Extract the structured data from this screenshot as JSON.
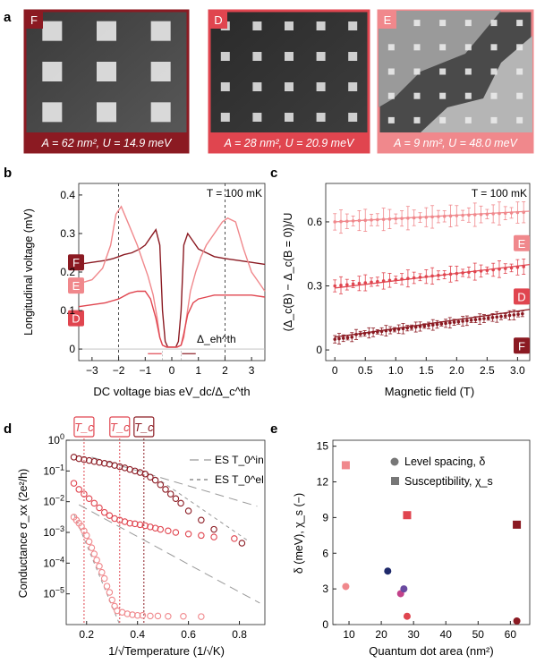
{
  "panel_letters": {
    "a": "a",
    "b": "b",
    "c": "c",
    "d": "d",
    "e": "e"
  },
  "images": [
    {
      "tag": "F",
      "caption": "A = 62 nm², U = 14.9 meV",
      "border_color": "#8b1a22",
      "caption_bg": "#8b1a22"
    },
    {
      "tag": "D",
      "caption": "A = 28 nm², U = 20.9 meV",
      "border_color": "#e0454f",
      "caption_bg": "#e0454f"
    },
    {
      "tag": "E",
      "caption": "A = 9 nm², U = 48.0 meV",
      "border_color": "#f0888c",
      "caption_bg": "#f0888c"
    }
  ],
  "colors": {
    "F": "#8b1a22",
    "D": "#e0454f",
    "E": "#f0888c",
    "gray": "#999999"
  },
  "chart_data": [
    {
      "panel": "b",
      "type": "line",
      "annotation_T": "T = 100 mK",
      "xlabel": "DC voltage bias eV_dc/Δ_c^th",
      "ylabel": "Longitudinal voltage (mV)",
      "xlim": [
        -3.5,
        3.5
      ],
      "ylim": [
        -0.03,
        0.43
      ],
      "xticks": [
        -3,
        -2,
        -1,
        0,
        1,
        2,
        3
      ],
      "yticks": [
        0,
        0.1,
        0.2,
        0.3,
        0.4
      ],
      "vlines": [
        -2,
        2
      ],
      "gap_annotation": "Δ_eh^th",
      "series": [
        {
          "name": "F",
          "color": "#8b1a22",
          "x": [
            -3.5,
            -3,
            -2.5,
            -2.2,
            -2,
            -1.8,
            -1.5,
            -1.2,
            -1,
            -0.8,
            -0.6,
            -0.45,
            -0.35,
            -0.25,
            -0.15,
            0,
            0.15,
            0.25,
            0.35,
            0.45,
            0.6,
            0.8,
            1,
            1.3,
            1.6,
            2,
            2.5,
            3,
            3.5
          ],
          "y": [
            0.22,
            0.225,
            0.23,
            0.235,
            0.24,
            0.245,
            0.25,
            0.26,
            0.27,
            0.29,
            0.31,
            0.27,
            0.1,
            0.02,
            0.005,
            0.005,
            0.005,
            0.02,
            0.1,
            0.27,
            0.3,
            0.28,
            0.26,
            0.25,
            0.24,
            0.235,
            0.23,
            0.225,
            0.22
          ]
        },
        {
          "name": "E",
          "color": "#f0888c",
          "x": [
            -3.5,
            -3,
            -2.6,
            -2.3,
            -2.1,
            -1.9,
            -1.6,
            -1.3,
            -1.1,
            -0.9,
            -0.7,
            -0.55,
            -0.45,
            -0.35,
            -0.2,
            0,
            0.2,
            0.35,
            0.45,
            0.55,
            0.7,
            0.9,
            1.1,
            1.3,
            1.6,
            1.9,
            2.1,
            2.4,
            2.7,
            3,
            3.3,
            3.5
          ],
          "y": [
            0.17,
            0.18,
            0.21,
            0.27,
            0.35,
            0.37,
            0.32,
            0.27,
            0.23,
            0.19,
            0.14,
            0.08,
            0.03,
            0.01,
            0.005,
            0.005,
            0.005,
            0.01,
            0.03,
            0.08,
            0.15,
            0.2,
            0.24,
            0.27,
            0.3,
            0.33,
            0.34,
            0.33,
            0.26,
            0.2,
            0.17,
            0.15
          ]
        },
        {
          "name": "D",
          "color": "#e0454f",
          "x": [
            -3.5,
            -3,
            -2.5,
            -2,
            -1.6,
            -1.3,
            -1,
            -0.8,
            -0.6,
            -0.45,
            -0.35,
            -0.2,
            0,
            0.2,
            0.35,
            0.45,
            0.6,
            0.8,
            1,
            1.3,
            1.6,
            2,
            2.5,
            3,
            3.5
          ],
          "y": [
            0.11,
            0.115,
            0.12,
            0.13,
            0.145,
            0.15,
            0.15,
            0.13,
            0.08,
            0.03,
            0.01,
            0.005,
            0.005,
            0.005,
            0.01,
            0.04,
            0.09,
            0.12,
            0.13,
            0.135,
            0.14,
            0.14,
            0.14,
            0.14,
            0.135
          ]
        }
      ]
    },
    {
      "panel": "c",
      "type": "scatter",
      "annotation_T": "T = 100 mK",
      "xlabel": "Magnetic field (T)",
      "ylabel": "(Δ_c(B) − Δ_c(B = 0))/U",
      "xlim": [
        -0.15,
        3.2
      ],
      "ylim": [
        -0.05,
        0.78
      ],
      "xticks": [
        0,
        0.5,
        1.0,
        1.5,
        2.0,
        2.5,
        3.0
      ],
      "xtick_labels": [
        "0",
        "0.5",
        "1.0",
        "1.5",
        "2.0",
        "2.5",
        "3.0"
      ],
      "yticks": [
        0,
        0.3,
        0.6
      ],
      "series": [
        {
          "name": "E",
          "color": "#f0888c",
          "fit": [
            [
              0,
              0.6
            ],
            [
              3.2,
              0.65
            ]
          ],
          "start": 0.6,
          "end": 0.645,
          "error": 0.055,
          "spacing": 0.1
        },
        {
          "name": "D",
          "color": "#e0454f",
          "fit": [
            [
              0,
              0.29
            ],
            [
              3.2,
              0.4
            ]
          ],
          "start": 0.3,
          "end": 0.39,
          "error": 0.04,
          "spacing": 0.1
        },
        {
          "name": "F",
          "color": "#8b1a22",
          "fit": [
            [
              0,
              0.06
            ],
            [
              3.2,
              0.19
            ]
          ],
          "start": 0.06,
          "end": 0.17,
          "error": 0.025,
          "spacing": 0.07
        }
      ]
    },
    {
      "panel": "d",
      "type": "scatter",
      "xlabel": "1/√Temperature (1/√K)",
      "ylabel": "Conductance σ_xx (2e²/h)",
      "xlim": [
        0.12,
        0.9
      ],
      "ylog": true,
      "ylim_exp": [
        -6,
        0
      ],
      "xticks": [
        0.2,
        0.4,
        0.6,
        0.8
      ],
      "yticks_exp": [
        -5,
        -4,
        -3,
        -2,
        -1,
        0
      ],
      "tc_labels": [
        "T_c",
        "T_c",
        "T_c"
      ],
      "tc_lines": [
        {
          "x": 0.19,
          "color": "#e0454f"
        },
        {
          "x": 0.33,
          "color": "#e0454f"
        },
        {
          "x": 0.425,
          "color": "#8b1a22"
        }
      ],
      "legend": [
        "ES T_0^in",
        "ES T_0^el"
      ],
      "series": [
        {
          "name": "F",
          "color": "#8b1a22",
          "x": [
            0.15,
            0.17,
            0.19,
            0.21,
            0.23,
            0.25,
            0.27,
            0.29,
            0.31,
            0.33,
            0.35,
            0.37,
            0.39,
            0.41,
            0.43,
            0.45,
            0.47,
            0.49,
            0.51,
            0.53,
            0.55,
            0.57,
            0.6,
            0.65,
            0.7,
            0.81
          ],
          "log10y": [
            -0.55,
            -0.6,
            -0.63,
            -0.66,
            -0.69,
            -0.72,
            -0.75,
            -0.78,
            -0.82,
            -0.86,
            -0.9,
            -0.95,
            -1.0,
            -1.05,
            -1.1,
            -1.2,
            -1.3,
            -1.45,
            -1.6,
            -1.75,
            -1.9,
            -2.05,
            -2.3,
            -2.6,
            -2.9,
            -3.35
          ]
        },
        {
          "name": "D",
          "color": "#e0454f",
          "x": [
            0.15,
            0.17,
            0.19,
            0.21,
            0.23,
            0.25,
            0.27,
            0.29,
            0.31,
            0.33,
            0.35,
            0.37,
            0.39,
            0.41,
            0.43,
            0.45,
            0.47,
            0.49,
            0.52,
            0.55,
            0.6,
            0.65,
            0.7,
            0.78
          ],
          "log10y": [
            -1.4,
            -1.6,
            -1.75,
            -1.9,
            -2.05,
            -2.2,
            -2.35,
            -2.45,
            -2.55,
            -2.6,
            -2.65,
            -2.7,
            -2.72,
            -2.75,
            -2.78,
            -2.82,
            -2.86,
            -2.9,
            -2.95,
            -3.0,
            -3.05,
            -3.1,
            -3.15,
            -3.2
          ]
        },
        {
          "name": "E",
          "color": "#f0888c",
          "x": [
            0.15,
            0.16,
            0.17,
            0.18,
            0.19,
            0.2,
            0.21,
            0.22,
            0.23,
            0.24,
            0.25,
            0.26,
            0.27,
            0.28,
            0.29,
            0.3,
            0.31,
            0.32,
            0.34,
            0.36,
            0.38,
            0.4,
            0.42,
            0.45,
            0.48,
            0.52,
            0.58,
            0.65
          ],
          "log10y": [
            -2.5,
            -2.6,
            -2.7,
            -2.8,
            -2.95,
            -3.1,
            -3.3,
            -3.5,
            -3.7,
            -3.9,
            -4.1,
            -4.3,
            -4.5,
            -4.75,
            -4.95,
            -5.2,
            -5.4,
            -5.55,
            -5.6,
            -5.65,
            -5.68,
            -5.7,
            -5.7,
            -5.72,
            -5.72,
            -5.73,
            -5.73,
            -5.74
          ]
        }
      ],
      "es_lines": [
        {
          "dash": "10,6",
          "from": [
            0.22,
            -0.55
          ],
          "to": [
            0.87,
            -2.15
          ]
        },
        {
          "dash": "4,4",
          "from": [
            0.47,
            -1.2
          ],
          "to": [
            0.83,
            -3.25
          ]
        },
        {
          "dash": "10,6",
          "from": [
            0.17,
            -2.1
          ],
          "to": [
            0.88,
            -5.3
          ]
        },
        {
          "dash": "4,4",
          "from": [
            0.15,
            -2.4
          ],
          "to": [
            0.33,
            -6.0
          ]
        }
      ]
    },
    {
      "panel": "e",
      "type": "scatter",
      "xlabel": "Quantum dot area (nm²)",
      "ylabel": "δ (meV), χ_s (−)",
      "xlim": [
        5,
        66
      ],
      "ylim": [
        0,
        15.5
      ],
      "xticks": [
        10,
        20,
        30,
        40,
        50,
        60
      ],
      "yticks": [
        0,
        3,
        6,
        9,
        12,
        15
      ],
      "legend": [
        "Level spacing, δ",
        "Susceptibility, χ_s"
      ],
      "level_spacing": [
        {
          "x": 9,
          "y": 3.2,
          "color": "#f0888c"
        },
        {
          "x": 22,
          "y": 4.5,
          "color": "#1f2a6b"
        },
        {
          "x": 26,
          "y": 2.6,
          "color": "#c2428a"
        },
        {
          "x": 27,
          "y": 3.0,
          "color": "#6a4aa0"
        },
        {
          "x": 28,
          "y": 0.7,
          "color": "#e0454f"
        },
        {
          "x": 62,
          "y": 0.3,
          "color": "#8b1a22"
        }
      ],
      "susceptibility": [
        {
          "x": 9,
          "y": 13.4,
          "color": "#f0888c"
        },
        {
          "x": 28,
          "y": 9.2,
          "color": "#e0454f"
        },
        {
          "x": 62,
          "y": 8.4,
          "color": "#8b1a22"
        }
      ]
    }
  ]
}
